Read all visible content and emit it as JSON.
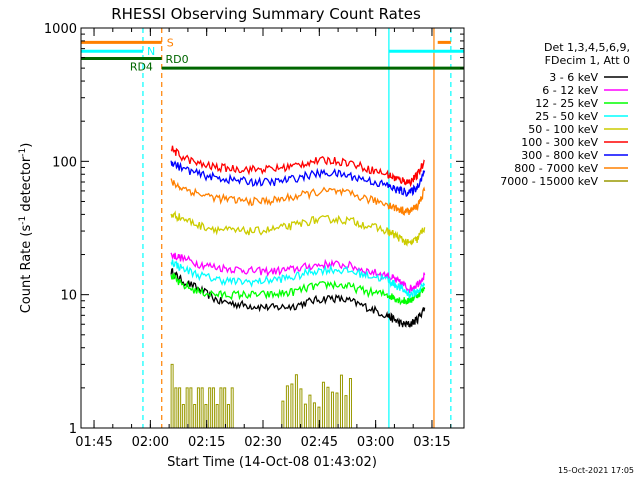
{
  "chart_data": {
    "type": "line",
    "title": "RHESSI Observing Summary Count Rates",
    "xlabel": "Start Time (14-Oct-08 01:43:02)",
    "ylabel_main": "Count Rate (s",
    "ylabel_sup1": "-1",
    "ylabel_mid": " detector",
    "ylabel_sup2": "-1",
    "ylabel_end": ")",
    "x_unit": "minutes from 01:43:02",
    "x_range": [
      -1.5,
      100.5
    ],
    "y_scale": "log",
    "ylim": [
      1,
      1000
    ],
    "x_ticks": [
      {
        "value": 1.97,
        "label": "01:45"
      },
      {
        "value": 16.97,
        "label": "02:00"
      },
      {
        "value": 31.97,
        "label": "02:15"
      },
      {
        "value": 46.97,
        "label": "02:30"
      },
      {
        "value": 61.97,
        "label": "02:45"
      },
      {
        "value": 76.97,
        "label": "03:00"
      },
      {
        "value": 91.97,
        "label": "03:15"
      }
    ],
    "y_ticks": [
      {
        "value": 1,
        "label": "1"
      },
      {
        "value": 10,
        "label": "10"
      },
      {
        "value": 100,
        "label": "100"
      },
      {
        "value": 1000,
        "label": "1000"
      }
    ],
    "legend": {
      "placement": "right",
      "header1": "Det 1,3,4,5,6,9,",
      "header2": "FDecim 1, Att 0"
    },
    "series": [
      {
        "name": "3 - 6 keV",
        "color": "#000000",
        "x": [
          22.5,
          25,
          30,
          35,
          40,
          45,
          50,
          55,
          60,
          65,
          70,
          75,
          80,
          82,
          84,
          86,
          88,
          90
        ],
        "values": [
          15,
          13,
          11,
          9,
          8.5,
          8.2,
          8,
          8.2,
          9,
          9.5,
          9,
          8,
          7,
          6.5,
          6,
          6,
          6.5,
          8
        ]
      },
      {
        "name": "6 - 12 keV",
        "color": "#ff00ff",
        "x": [
          22.5,
          25,
          30,
          35,
          40,
          45,
          50,
          55,
          60,
          65,
          70,
          75,
          80,
          82,
          84,
          86,
          88,
          90
        ],
        "values": [
          20,
          19,
          17,
          16,
          15.5,
          15,
          15,
          15.5,
          16.5,
          17,
          16.5,
          15,
          14,
          13,
          12,
          11,
          12,
          14
        ]
      },
      {
        "name": "12 - 25 keV",
        "color": "#00ff00",
        "x": [
          22.5,
          25,
          30,
          35,
          40,
          45,
          50,
          55,
          60,
          65,
          70,
          75,
          80,
          82,
          84,
          86,
          88,
          90
        ],
        "values": [
          14,
          12,
          10.5,
          10,
          10,
          10,
          10,
          10.5,
          11.5,
          12,
          11.5,
          10.5,
          10,
          9.5,
          9,
          9,
          10,
          11
        ]
      },
      {
        "name": "25 - 50 keV",
        "color": "#00ffff",
        "x": [
          22.5,
          25,
          30,
          35,
          40,
          45,
          50,
          55,
          60,
          65,
          70,
          75,
          80,
          82,
          84,
          86,
          88,
          90
        ],
        "values": [
          18,
          16,
          14,
          13,
          12.5,
          12.5,
          13,
          13.5,
          15,
          15.5,
          15,
          14,
          13,
          12,
          11,
          10,
          10.5,
          12
        ]
      },
      {
        "name": "50 - 100 keV",
        "color": "#cccc00",
        "x": [
          22.5,
          25,
          30,
          35,
          40,
          45,
          50,
          55,
          60,
          65,
          70,
          75,
          80,
          82,
          84,
          86,
          88,
          90
        ],
        "values": [
          40,
          38,
          33,
          31,
          30,
          30,
          31,
          33,
          36,
          37,
          36,
          33,
          30,
          28,
          26,
          24,
          26,
          32
        ]
      },
      {
        "name": "100 - 300 keV",
        "color": "#ff0000",
        "x": [
          22.5,
          25,
          30,
          35,
          40,
          45,
          50,
          55,
          60,
          65,
          70,
          75,
          80,
          82,
          84,
          86,
          88,
          90
        ],
        "values": [
          125,
          110,
          95,
          90,
          88,
          87,
          88,
          92,
          100,
          102,
          98,
          88,
          80,
          75,
          72,
          70,
          78,
          100
        ]
      },
      {
        "name": "300 - 800 keV",
        "color": "#0000ff",
        "x": [
          22.5,
          25,
          30,
          35,
          40,
          45,
          50,
          55,
          60,
          65,
          70,
          75,
          80,
          82,
          84,
          86,
          88,
          90
        ],
        "values": [
          100,
          90,
          80,
          75,
          72,
          70,
          70,
          74,
          80,
          82,
          78,
          72,
          66,
          62,
          60,
          58,
          64,
          85
        ]
      },
      {
        "name": "800 - 7000 keV",
        "color": "#ff8000",
        "x": [
          22.5,
          25,
          30,
          35,
          40,
          45,
          50,
          55,
          60,
          65,
          70,
          75,
          80,
          82,
          84,
          86,
          88,
          90
        ],
        "values": [
          70,
          64,
          57,
          53,
          51,
          50,
          51,
          54,
          58,
          60,
          57,
          52,
          48,
          45,
          43,
          42,
          46,
          60
        ]
      },
      {
        "name": "7000 - 15000 keV",
        "color": "#999900",
        "x": [
          22.5,
          23.5,
          24.5,
          25.5,
          26.5,
          27.5,
          28.5,
          29.5,
          30.5,
          31.5,
          32.5,
          33.5,
          34.5,
          35.5,
          36.5,
          37.5,
          38.5
        ],
        "values": [
          3,
          2,
          2,
          1.5,
          2,
          2,
          1.5,
          2,
          2,
          1.5,
          2,
          2,
          1.5,
          2,
          2,
          1.5,
          2
        ]
      }
    ],
    "annotations": {
      "saa_bar": {
        "label": "S",
        "color": "#ff8000",
        "value": 780,
        "x_start": -1.5,
        "x_end": 20
      },
      "night_bar": {
        "label": "N",
        "color": "#00ffff",
        "value": 670,
        "x_start": -1.5,
        "x_end": 15
      },
      "rd4_bar": {
        "label": "RD4",
        "color": "#006600",
        "value": 590,
        "x_start": -1.5,
        "x_end": 20
      },
      "rd0_bar": {
        "label": "RD0",
        "color": "#006600",
        "value": 500,
        "x_start": 20,
        "x_end": 100.5
      },
      "vlines": [
        {
          "x": 15,
          "color": "#00ffff",
          "dashed": true
        },
        {
          "x": 20,
          "color": "#ff8000",
          "dashed": true
        },
        {
          "x": 80.5,
          "color": "#00ffff",
          "dashed": false
        },
        {
          "x": 92.5,
          "color": "#ff8000",
          "dashed": false
        },
        {
          "x": 97,
          "color": "#00ffff",
          "dashed": true
        }
      ]
    },
    "footer_date": "15-Oct-2021 17:05"
  }
}
